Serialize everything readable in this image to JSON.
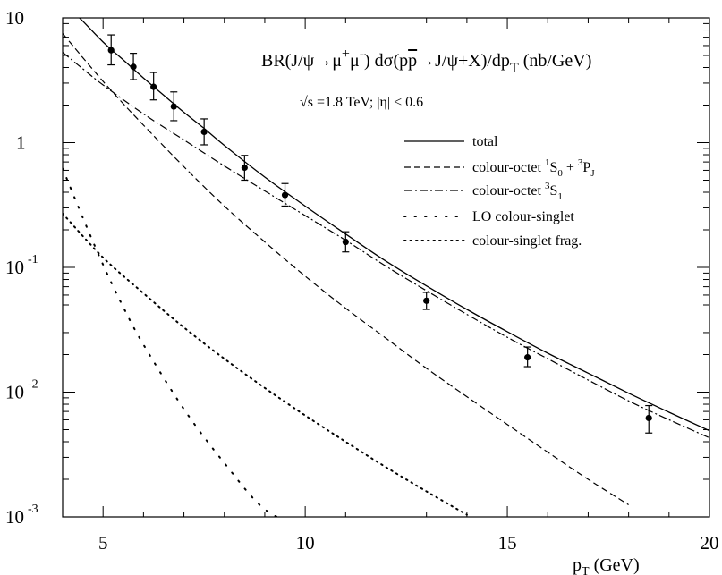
{
  "chart_data": {
    "type": "line",
    "title": "BR(J/ψ→μ⁺μ⁻) dσ(pp̄→J/ψ+X)/dp_T (nb/GeV)",
    "title_parts": {
      "a": "BR(J/ψ→μ",
      "a_sup": "+",
      "b": "μ",
      "b_sup": "-",
      "c": ") dσ(p",
      "pbar": "p",
      "d": "→J/ψ+X)/dp",
      "d_sub": "T",
      "e": " (nb/GeV)"
    },
    "subtitle": "√s =1.8 TeV; |η| < 0.6",
    "xlabel": "p_T (GeV)",
    "xlabel_parts": {
      "main": "p",
      "sub": "T",
      "unit": " (GeV)"
    },
    "ylabel": "",
    "xlim": [
      4,
      20
    ],
    "ylim": [
      0.001,
      10
    ],
    "yscale": "log",
    "grid": false,
    "legend_position": "right, below subtitle",
    "x_ticks": [
      5,
      10,
      15,
      20
    ],
    "x_tick_labels": [
      "5",
      "10",
      "15",
      "20"
    ],
    "y_ticks": [
      {
        "value": 10,
        "base": "10",
        "exp": ""
      },
      {
        "value": 1,
        "base": "1",
        "exp": ""
      },
      {
        "value": 0.1,
        "base": "10",
        "exp": "-1"
      },
      {
        "value": 0.01,
        "base": "10",
        "exp": "-2"
      },
      {
        "value": 0.001,
        "base": "10",
        "exp": "-3"
      }
    ],
    "series": [
      {
        "name": "total",
        "style": "solid",
        "x": [
          4,
          4.5,
          5,
          5.5,
          6,
          6.5,
          7,
          7.5,
          8,
          9,
          10,
          11,
          12,
          13,
          14,
          15,
          16,
          17,
          18,
          19,
          20
        ],
        "y": [
          13.5,
          9.4,
          6.4,
          4.6,
          3.3,
          2.4,
          1.75,
          1.3,
          0.95,
          0.53,
          0.31,
          0.185,
          0.112,
          0.071,
          0.046,
          0.0305,
          0.0205,
          0.0142,
          0.0098,
          0.0069,
          0.0049
        ]
      },
      {
        "name": "colour-octet ¹S₀ + ³P_J",
        "label_parts": {
          "a": "colour-octet ",
          "s1": "1",
          "b": "S",
          "sub1": "0",
          "c": " + ",
          "s2": "3",
          "d": "P",
          "sub2": "J"
        },
        "style": "dashed",
        "x": [
          4,
          4.5,
          5,
          5.5,
          6,
          7,
          8,
          9,
          10,
          11,
          12,
          13,
          14,
          15,
          16,
          17,
          18
        ],
        "y": [
          7.5,
          4.8,
          3.1,
          2.05,
          1.38,
          0.64,
          0.31,
          0.16,
          0.085,
          0.047,
          0.027,
          0.0155,
          0.0092,
          0.0055,
          0.0033,
          0.002,
          0.00125
        ]
      },
      {
        "name": "colour-octet ³S₁",
        "label_parts": {
          "a": "colour-octet ",
          "s1": "3",
          "b": "S",
          "sub1": "1"
        },
        "style": "dashdot",
        "x": [
          4,
          4.5,
          5,
          6,
          7,
          8,
          9,
          10,
          11,
          12,
          13,
          14,
          15,
          16,
          17,
          18,
          19,
          20
        ],
        "y": [
          5.3,
          3.9,
          2.9,
          1.7,
          1.05,
          0.65,
          0.41,
          0.26,
          0.165,
          0.102,
          0.065,
          0.042,
          0.0275,
          0.0185,
          0.0125,
          0.0085,
          0.006,
          0.0043
        ]
      },
      {
        "name": "LO colour-singlet",
        "style": "sparse-dotted",
        "x": [
          4,
          4.5,
          5,
          5.5,
          6,
          7,
          8,
          9,
          10
        ],
        "y": [
          0.62,
          0.25,
          0.105,
          0.048,
          0.024,
          0.0073,
          0.0027,
          0.00115,
          0.00082
        ]
      },
      {
        "name": "colour-singlet frag.",
        "style": "dotted",
        "x": [
          4,
          5,
          6,
          7,
          8,
          9,
          10,
          11,
          12,
          13,
          14
        ],
        "y": [
          0.27,
          0.12,
          0.062,
          0.033,
          0.0185,
          0.0108,
          0.0065,
          0.004,
          0.0025,
          0.0016,
          0.00104
        ]
      }
    ],
    "data_points": {
      "name": "data",
      "x": [
        5.2,
        5.75,
        6.25,
        6.75,
        7.5,
        8.5,
        9.5,
        11.0,
        13.0,
        15.5,
        18.5
      ],
      "y": [
        5.5,
        4.05,
        2.8,
        1.95,
        1.22,
        0.63,
        0.38,
        0.16,
        0.054,
        0.019,
        0.0062
      ],
      "y_lo": [
        4.2,
        3.2,
        2.2,
        1.5,
        0.96,
        0.5,
        0.31,
        0.133,
        0.046,
        0.016,
        0.0047
      ],
      "y_hi": [
        7.3,
        5.2,
        3.65,
        2.55,
        1.55,
        0.79,
        0.47,
        0.193,
        0.063,
        0.023,
        0.0078
      ]
    }
  }
}
